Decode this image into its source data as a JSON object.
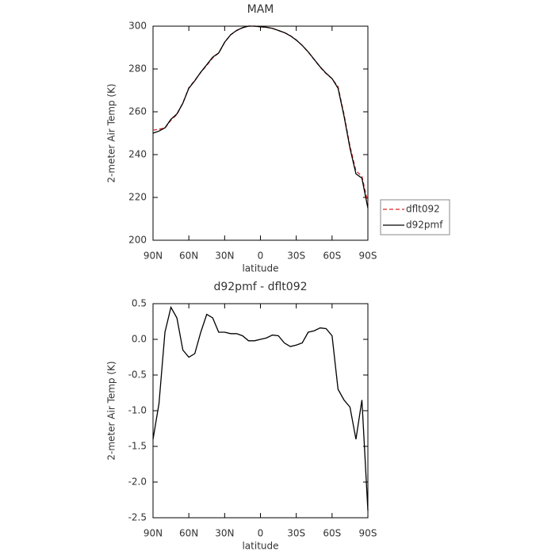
{
  "chart_data": [
    {
      "type": "line",
      "title": "MAM",
      "xlabel": "latitude",
      "ylabel": "2-meter Air Temp (K)",
      "x": [
        90,
        85,
        80,
        75,
        70,
        65,
        60,
        55,
        50,
        45,
        40,
        35,
        30,
        25,
        20,
        15,
        10,
        5,
        0,
        -5,
        -10,
        -15,
        -20,
        -25,
        -30,
        -35,
        -40,
        -45,
        -50,
        -55,
        -60,
        -65,
        -70,
        -75,
        -80,
        -85,
        -90
      ],
      "xlim": [
        90,
        -90
      ],
      "xticks": [
        {
          "value": 90,
          "label": "90N"
        },
        {
          "value": 60,
          "label": "60N"
        },
        {
          "value": 30,
          "label": "30N"
        },
        0,
        {
          "value": -30,
          "label": "30S"
        },
        {
          "value": -60,
          "label": "60S"
        },
        {
          "value": -90,
          "label": "90S"
        }
      ],
      "ylim": [
        200,
        300
      ],
      "yticks": [
        200,
        220,
        240,
        260,
        280,
        300
      ],
      "legend": "right",
      "series": [
        {
          "name": "dflt092",
          "color": "#d62728",
          "dashed": true,
          "values": [
            251.4,
            251.9,
            252.4,
            256.05,
            258.7,
            264.15,
            271.25,
            274.7,
            278.4,
            281.65,
            285.2,
            287.4,
            292.4,
            295.92,
            297.92,
            299.25,
            300.02,
            300.02,
            299.7,
            299.48,
            298.94,
            297.95,
            297.05,
            295.6,
            293.58,
            291.05,
            287.9,
            284.38,
            280.84,
            277.85,
            275.45,
            271.7,
            258.85,
            243.95,
            232.4,
            229.85,
            217.4
          ]
        },
        {
          "name": "d92pmf",
          "color": "#000000",
          "dashed": false,
          "values": [
            250,
            251,
            252.5,
            256.5,
            259,
            264,
            271,
            274.5,
            278.5,
            282,
            285.5,
            287.5,
            292.5,
            296,
            298,
            299.3,
            300,
            300,
            299.7,
            299.5,
            299,
            298,
            297,
            295.5,
            293.5,
            291,
            288,
            284.5,
            281,
            278,
            275.5,
            271,
            258,
            243,
            231,
            229,
            215
          ]
        }
      ]
    },
    {
      "type": "line",
      "title": "d92pmf - dflt092",
      "xlabel": "latitude",
      "ylabel": "2-meter Air Temp (K)",
      "x": [
        90,
        85,
        80,
        75,
        70,
        65,
        60,
        55,
        50,
        45,
        40,
        35,
        30,
        25,
        20,
        15,
        10,
        5,
        0,
        -5,
        -10,
        -15,
        -20,
        -25,
        -30,
        -35,
        -40,
        -45,
        -50,
        -55,
        -60,
        -65,
        -70,
        -75,
        -80,
        -85,
        -90
      ],
      "xlim": [
        90,
        -90
      ],
      "xticks": [
        {
          "value": 90,
          "label": "90N"
        },
        {
          "value": 60,
          "label": "60N"
        },
        {
          "value": 30,
          "label": "30N"
        },
        0,
        {
          "value": -30,
          "label": "30S"
        },
        {
          "value": -60,
          "label": "60S"
        },
        {
          "value": -90,
          "label": "90S"
        }
      ],
      "ylim": [
        -2.5,
        0.5
      ],
      "yticks": [
        -2.5,
        {
          "value": -2,
          "label": "-2.0"
        },
        -1.5,
        {
          "value": -1,
          "label": "-1.0"
        },
        -0.5,
        {
          "value": 0,
          "label": "0.0"
        },
        0.5
      ],
      "color": "#000000",
      "values": [
        -1.4,
        -0.9,
        0.1,
        0.45,
        0.3,
        -0.15,
        -0.25,
        -0.2,
        0.1,
        0.35,
        0.3,
        0.1,
        0.1,
        0.08,
        0.08,
        0.05,
        -0.02,
        -0.02,
        0,
        0.02,
        0.06,
        0.05,
        -0.05,
        -0.1,
        -0.08,
        -0.05,
        0.1,
        0.12,
        0.16,
        0.15,
        0.05,
        -0.7,
        -0.85,
        -0.95,
        -1.4,
        -0.85,
        -2.4
      ]
    }
  ]
}
